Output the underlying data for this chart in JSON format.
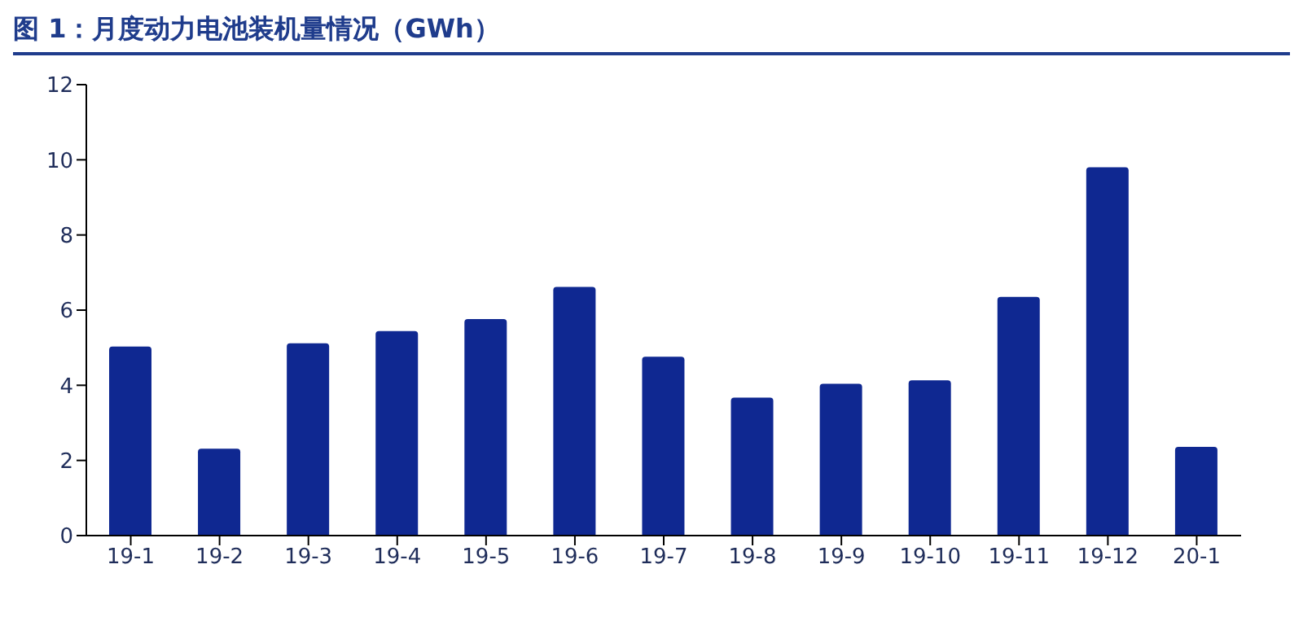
{
  "chart_data": {
    "type": "bar",
    "title": "图 1：月度动力电池装机量情况（GWh）",
    "categories": [
      "19-1",
      "19-2",
      "19-3",
      "19-4",
      "19-5",
      "19-6",
      "19-7",
      "19-8",
      "19-9",
      "19-10",
      "19-11",
      "19-12",
      "20-1"
    ],
    "values": [
      5.03,
      2.31,
      5.12,
      5.44,
      5.76,
      6.62,
      4.76,
      3.67,
      4.04,
      4.13,
      6.35,
      9.8,
      2.36
    ],
    "color": "#0f2891",
    "ylim": [
      0,
      12
    ],
    "yticks": [
      0,
      2,
      4,
      6,
      8,
      10,
      12
    ],
    "grid": false,
    "legend": false
  }
}
